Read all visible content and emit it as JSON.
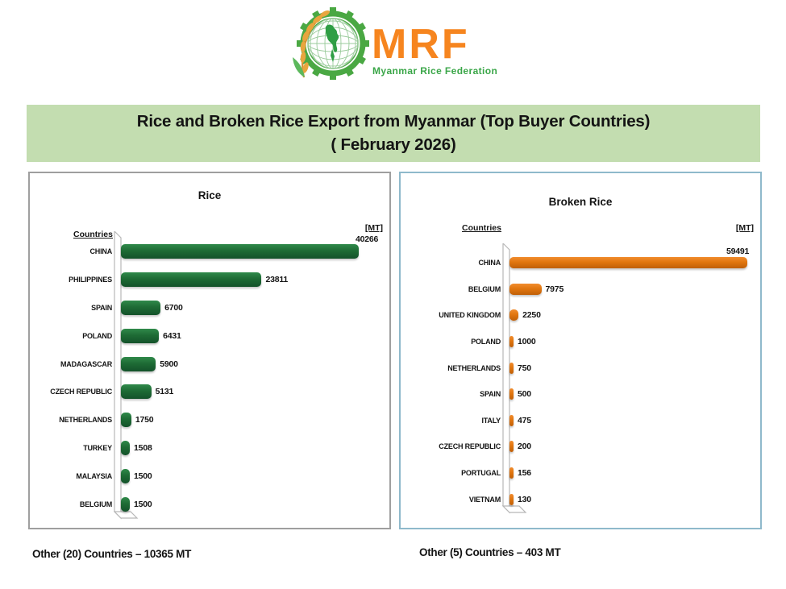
{
  "logo": {
    "brand": "MRF",
    "subtitle": "Myanmar Rice Federation",
    "colors": {
      "brand_orange": "#f6851f",
      "brand_green": "#3aa648",
      "wheat_gold": "#e8a53e",
      "gear_green": "#4aa843",
      "map_green": "#2f9e44"
    }
  },
  "banner": {
    "line1": "Rice and Broken Rice Export from Myanmar (Top Buyer Countries)",
    "line2": "( February 2026)",
    "bg": "#c3ddb0"
  },
  "chart_data": [
    {
      "type": "bar",
      "orientation": "horizontal",
      "title": "Rice",
      "countries_label": "Countries",
      "unit_label": "[MT]",
      "categories": [
        "CHINA",
        "PHILIPPINES",
        "SPAIN",
        "POLAND",
        "MADAGASCAR",
        "CZECH REPUBLIC",
        "NETHERLANDS",
        "TURKEY",
        "MALAYSIA",
        "BELGIUM"
      ],
      "values": [
        40266,
        23811,
        6700,
        6431,
        5900,
        5131,
        1750,
        1508,
        1500,
        1500
      ],
      "xlim": [
        0,
        40266
      ],
      "grid": false,
      "legend": false,
      "data_labels": true,
      "bar_color": "#1e6b35",
      "bar_color_light": "#2f8a4a",
      "bar_color_dark": "#14522a"
    },
    {
      "type": "bar",
      "orientation": "horizontal",
      "title": "Broken Rice",
      "countries_label": "Countries",
      "unit_label": "[MT]",
      "categories": [
        "CHINA",
        "BELGIUM",
        "UNITED KINGDOM",
        "POLAND",
        "NETHERLANDS",
        "SPAIN",
        "ITALY",
        "CZECH REPUBLIC",
        "PORTUGAL",
        "VIETNAM"
      ],
      "values": [
        59491,
        7975,
        2250,
        1000,
        750,
        500,
        475,
        200,
        156,
        130
      ],
      "xlim": [
        0,
        59491
      ],
      "grid": false,
      "legend": false,
      "data_labels": true,
      "bar_color": "#e1760f",
      "bar_color_light": "#f18c2e",
      "bar_color_dark": "#c05f08"
    }
  ],
  "footnotes": [
    {
      "text": "Other (20) Countries – 10365 MT"
    },
    {
      "text": "Other (5) Countries – 403 MT"
    }
  ]
}
